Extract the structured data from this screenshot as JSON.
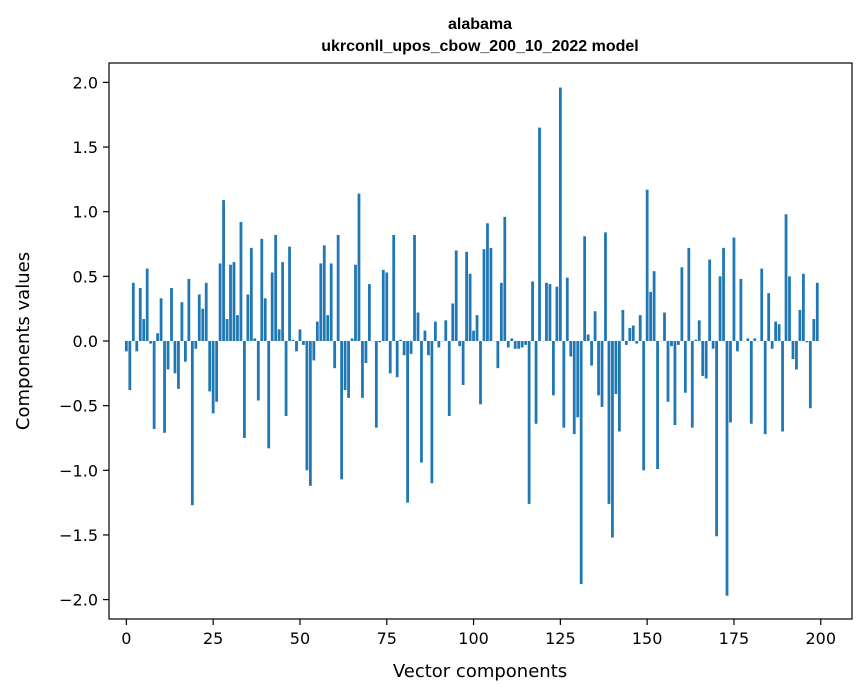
{
  "chart_data": {
    "type": "bar",
    "title": "alabama",
    "subtitle": "ukrconll_upos_cbow_200_10_2022 model",
    "xlabel": "Vector components",
    "ylabel": "Components values",
    "xlim": [
      -5,
      209
    ],
    "ylim": [
      -2.15,
      2.15
    ],
    "xticks": [
      0,
      25,
      50,
      75,
      100,
      125,
      150,
      175,
      200
    ],
    "xtick_labels": [
      "0",
      "25",
      "50",
      "75",
      "100",
      "125",
      "150",
      "175",
      "200"
    ],
    "yticks": [
      2.0,
      1.5,
      1.0,
      0.5,
      0.0,
      -0.5,
      -1.0,
      -1.5,
      -2.0
    ],
    "ytick_labels": [
      "2.0",
      "1.5",
      "1.0",
      "0.5",
      "0.0",
      "−0.5",
      "−1.0",
      "−1.5",
      "−2.0"
    ],
    "bar_color": "#1f77b4",
    "grid": false,
    "values": [
      -0.08,
      -0.38,
      0.45,
      -0.08,
      0.41,
      0.17,
      0.56,
      -0.02,
      -0.68,
      0.06,
      0.33,
      -0.71,
      -0.22,
      0.41,
      -0.25,
      -0.37,
      0.3,
      -0.16,
      0.48,
      -1.27,
      -0.06,
      0.36,
      0.25,
      0.45,
      -0.39,
      -0.56,
      -0.47,
      0.6,
      1.09,
      0.17,
      0.59,
      0.61,
      0.2,
      0.92,
      -0.75,
      0.36,
      0.72,
      0.02,
      -0.46,
      0.79,
      0.33,
      -0.83,
      0.53,
      0.82,
      0.09,
      0.61,
      -0.58,
      0.73,
      0.01,
      -0.08,
      0.09,
      -0.03,
      -1.0,
      -1.12,
      -0.15,
      0.15,
      0.6,
      0.74,
      0.2,
      0.6,
      -0.21,
      0.82,
      -1.07,
      -0.38,
      -0.44,
      0.02,
      0.59,
      1.14,
      -0.44,
      -0.17,
      0.44,
      0.0,
      -0.67,
      -0.01,
      0.55,
      0.53,
      -0.25,
      0.82,
      -0.28,
      0.01,
      -0.11,
      -1.25,
      -0.1,
      0.82,
      0.22,
      -0.94,
      0.08,
      -0.11,
      -1.1,
      0.15,
      -0.05,
      0.0,
      0.16,
      -0.58,
      0.29,
      0.7,
      -0.04,
      -0.34,
      0.69,
      0.52,
      0.08,
      0.2,
      -0.49,
      0.71,
      0.91,
      0.72,
      0.0,
      -0.21,
      0.45,
      0.96,
      -0.05,
      0.02,
      -0.06,
      -0.06,
      -0.05,
      -0.03,
      -1.26,
      0.46,
      -0.64,
      1.65,
      0.0,
      0.45,
      0.44,
      -0.42,
      0.42,
      1.96,
      -0.67,
      0.49,
      -0.12,
      -0.72,
      -0.59,
      -1.88,
      0.81,
      0.05,
      -0.19,
      0.23,
      -0.42,
      -0.51,
      0.84,
      -1.26,
      -1.52,
      -0.41,
      -0.7,
      0.24,
      -0.03,
      0.1,
      0.12,
      -0.02,
      0.2,
      -1.0,
      1.17,
      0.38,
      0.54,
      -0.99,
      0.0,
      0.22,
      -0.47,
      -0.04,
      -0.65,
      -0.03,
      0.57,
      -0.4,
      0.72,
      -0.67,
      0.01,
      0.16,
      -0.27,
      -0.29,
      0.63,
      -0.06,
      -1.51,
      0.5,
      0.72,
      -1.97,
      -0.63,
      0.8,
      -0.08,
      0.48,
      0.0,
      0.02,
      -0.64,
      0.02,
      0.0,
      0.56,
      -0.72,
      0.37,
      -0.06,
      0.15,
      0.13,
      -0.7,
      0.98,
      0.5,
      -0.14,
      -0.22,
      0.24,
      0.52,
      -0.01,
      -0.52,
      0.17,
      0.45
    ]
  }
}
